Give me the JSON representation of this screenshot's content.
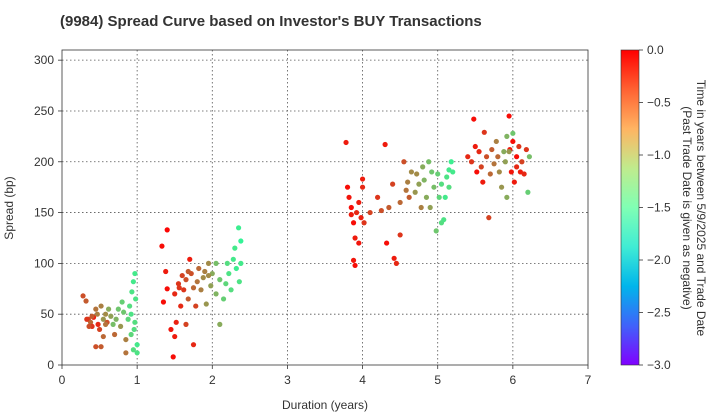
{
  "chart_data": {
    "type": "scatter",
    "title": "(9984)   Spread Curve based on Investor's BUY Transactions",
    "xlabel": "Duration (years)",
    "ylabel": "Spread (bp)",
    "xlim": [
      0,
      7
    ],
    "ylim": [
      0,
      310
    ],
    "xticks": [
      "0",
      "1",
      "2",
      "3",
      "4",
      "5",
      "6",
      "7"
    ],
    "yticks": [
      "0",
      "50",
      "100",
      "150",
      "200",
      "250",
      "300"
    ],
    "grid": true,
    "colorbar": {
      "label_line1": "Time in years between 5/9/2025 and Trade Date",
      "label_line2": "(Past Trade Date is given as negative)",
      "range": [
        -3.0,
        0.0
      ],
      "ticks": [
        "0.0",
        "−0.5",
        "−1.0",
        "−1.5",
        "−2.0",
        "−2.5",
        "−3.0"
      ],
      "colormap": "rainbow"
    },
    "points": [
      [
        0.28,
        68,
        -0.3
      ],
      [
        0.32,
        63,
        -0.35
      ],
      [
        0.35,
        45,
        -0.25
      ],
      [
        0.38,
        42,
        -0.4
      ],
      [
        0.4,
        38,
        -0.2
      ],
      [
        0.42,
        47,
        -0.1
      ],
      [
        0.45,
        18,
        -0.3
      ],
      [
        0.45,
        55,
        -0.45
      ],
      [
        0.48,
        40,
        -0.15
      ],
      [
        0.5,
        35,
        -0.25
      ],
      [
        0.52,
        58,
        -0.5
      ],
      [
        0.52,
        18,
        -0.35
      ],
      [
        0.55,
        45,
        -0.6
      ],
      [
        0.55,
        28,
        -0.4
      ],
      [
        0.58,
        50,
        -0.55
      ],
      [
        0.6,
        42,
        -0.3
      ],
      [
        0.62,
        55,
        -0.7
      ],
      [
        0.65,
        48,
        -0.65
      ],
      [
        0.68,
        40,
        -0.8
      ],
      [
        0.7,
        30,
        -0.4
      ],
      [
        0.72,
        45,
        -0.75
      ],
      [
        0.75,
        55,
        -0.85
      ],
      [
        0.78,
        38,
        -0.6
      ],
      [
        0.8,
        62,
        -0.9
      ],
      [
        0.82,
        52,
        -0.85
      ],
      [
        0.85,
        25,
        -0.5
      ],
      [
        0.85,
        12,
        -0.45
      ],
      [
        0.88,
        45,
        -0.95
      ],
      [
        0.9,
        58,
        -1.0
      ],
      [
        0.92,
        50,
        -1.05
      ],
      [
        0.92,
        30,
        -0.95
      ],
      [
        0.93,
        72,
        -1.05
      ],
      [
        0.95,
        82,
        -1.1
      ],
      [
        0.95,
        15,
        -1.0
      ],
      [
        0.97,
        90,
        -1.1
      ],
      [
        0.97,
        42,
        -1.0
      ],
      [
        0.98,
        65,
        -1.05
      ],
      [
        1.0,
        20,
        -1.1
      ],
      [
        1.0,
        12,
        -1.05
      ],
      [
        0.96,
        35,
        -1.0
      ],
      [
        0.33,
        45,
        -0.2
      ],
      [
        0.4,
        48,
        -0.35
      ],
      [
        0.36,
        38,
        -0.3
      ],
      [
        0.47,
        50,
        -0.5
      ],
      [
        0.58,
        40,
        -0.45
      ],
      [
        1.33,
        117,
        -0.05
      ],
      [
        1.35,
        62,
        -0.05
      ],
      [
        1.38,
        92,
        -0.1
      ],
      [
        1.4,
        133,
        -0.02
      ],
      [
        1.4,
        75,
        -0.05
      ],
      [
        1.45,
        35,
        -0.08
      ],
      [
        1.48,
        8,
        -0.05
      ],
      [
        1.5,
        28,
        -0.1
      ],
      [
        1.5,
        70,
        -0.15
      ],
      [
        1.52,
        42,
        -0.12
      ],
      [
        1.55,
        80,
        -0.2
      ],
      [
        1.58,
        58,
        -0.15
      ],
      [
        1.6,
        88,
        -0.25
      ],
      [
        1.62,
        74,
        -0.2
      ],
      [
        1.65,
        84,
        -0.3
      ],
      [
        1.65,
        40,
        -0.25
      ],
      [
        1.68,
        65,
        -0.35
      ],
      [
        1.7,
        104,
        -0.1
      ],
      [
        1.72,
        90,
        -0.3
      ],
      [
        1.75,
        76,
        -0.4
      ],
      [
        1.75,
        20,
        -0.15
      ],
      [
        1.78,
        58,
        -0.25
      ],
      [
        1.8,
        82,
        -0.45
      ],
      [
        1.82,
        95,
        -0.4
      ],
      [
        1.85,
        74,
        -0.5
      ],
      [
        1.88,
        86,
        -0.55
      ],
      [
        1.9,
        92,
        -0.5
      ],
      [
        1.92,
        60,
        -0.6
      ],
      [
        1.95,
        100,
        -0.55
      ],
      [
        1.98,
        78,
        -0.65
      ],
      [
        2.0,
        90,
        -0.7
      ],
      [
        2.05,
        70,
        -0.75
      ],
      [
        2.05,
        100,
        -0.8
      ],
      [
        2.1,
        84,
        -0.85
      ],
      [
        2.1,
        40,
        -0.7
      ],
      [
        2.15,
        65,
        -0.9
      ],
      [
        2.18,
        80,
        -0.95
      ],
      [
        2.2,
        100,
        -1.0
      ],
      [
        2.22,
        90,
        -1.05
      ],
      [
        2.25,
        74,
        -1.0
      ],
      [
        2.28,
        104,
        -1.1
      ],
      [
        2.3,
        115,
        -1.1
      ],
      [
        2.32,
        95,
        -1.15
      ],
      [
        2.35,
        135,
        -1.15
      ],
      [
        2.36,
        82,
        -1.05
      ],
      [
        2.38,
        122,
        -1.2
      ],
      [
        2.38,
        100,
        -1.1
      ],
      [
        1.95,
        88,
        -0.55
      ],
      [
        1.56,
        76,
        -0.2
      ],
      [
        1.68,
        92,
        -0.35
      ],
      [
        3.78,
        219,
        -0.1
      ],
      [
        3.8,
        175,
        -0.05
      ],
      [
        3.82,
        165,
        -0.08
      ],
      [
        3.85,
        155,
        -0.05
      ],
      [
        3.85,
        148,
        -0.1
      ],
      [
        3.88,
        140,
        -0.05
      ],
      [
        3.88,
        103,
        -0.08
      ],
      [
        3.9,
        125,
        -0.1
      ],
      [
        3.9,
        98,
        -0.05
      ],
      [
        3.92,
        150,
        -0.15
      ],
      [
        3.95,
        160,
        -0.1
      ],
      [
        3.95,
        120,
        -0.08
      ],
      [
        3.98,
        145,
        -0.12
      ],
      [
        4.0,
        175,
        -0.15
      ],
      [
        4.0,
        183,
        -0.1
      ],
      [
        4.02,
        140,
        -0.2
      ],
      [
        4.1,
        150,
        -0.25
      ],
      [
        4.2,
        165,
        -0.2
      ],
      [
        4.25,
        152,
        -0.3
      ],
      [
        4.3,
        217,
        -0.1
      ],
      [
        4.32,
        120,
        -0.05
      ],
      [
        4.35,
        155,
        -0.35
      ],
      [
        4.4,
        178,
        -0.25
      ],
      [
        4.42,
        105,
        -0.1
      ],
      [
        4.45,
        100,
        -0.15
      ],
      [
        4.5,
        128,
        -0.2
      ],
      [
        4.5,
        160,
        -0.4
      ],
      [
        4.55,
        200,
        -0.3
      ],
      [
        4.58,
        172,
        -0.45
      ],
      [
        4.6,
        180,
        -0.5
      ],
      [
        4.62,
        165,
        -0.35
      ],
      [
        4.65,
        190,
        -0.55
      ],
      [
        4.7,
        170,
        -0.6
      ],
      [
        4.72,
        188,
        -0.55
      ],
      [
        4.75,
        178,
        -0.65
      ],
      [
        4.78,
        155,
        -0.5
      ],
      [
        4.8,
        195,
        -0.7
      ],
      [
        4.82,
        182,
        -0.75
      ],
      [
        4.85,
        165,
        -0.7
      ],
      [
        4.88,
        200,
        -0.8
      ],
      [
        4.9,
        155,
        -0.65
      ],
      [
        4.92,
        190,
        -0.85
      ],
      [
        4.95,
        175,
        -0.8
      ],
      [
        4.98,
        132,
        -0.85
      ],
      [
        5.0,
        188,
        -0.9
      ],
      [
        5.02,
        165,
        -0.95
      ],
      [
        5.05,
        140,
        -1.0
      ],
      [
        5.05,
        178,
        -1.0
      ],
      [
        5.08,
        143,
        -1.05
      ],
      [
        5.1,
        165,
        -1.1
      ],
      [
        5.12,
        185,
        -1.05
      ],
      [
        5.15,
        192,
        -1.1
      ],
      [
        5.18,
        200,
        -1.15
      ],
      [
        5.2,
        190,
        -1.1
      ],
      [
        5.15,
        175,
        -1.0
      ],
      [
        5.4,
        205,
        -0.15
      ],
      [
        5.45,
        200,
        -0.2
      ],
      [
        5.48,
        242,
        -0.05
      ],
      [
        5.5,
        215,
        -0.1
      ],
      [
        5.52,
        190,
        -0.05
      ],
      [
        5.55,
        210,
        -0.15
      ],
      [
        5.58,
        195,
        -0.25
      ],
      [
        5.6,
        180,
        -0.1
      ],
      [
        5.62,
        229,
        -0.2
      ],
      [
        5.65,
        205,
        -0.3
      ],
      [
        5.68,
        145,
        -0.25
      ],
      [
        5.7,
        188,
        -0.4
      ],
      [
        5.72,
        212,
        -0.35
      ],
      [
        5.75,
        198,
        -0.45
      ],
      [
        5.78,
        220,
        -0.5
      ],
      [
        5.8,
        205,
        -0.4
      ],
      [
        5.82,
        190,
        -0.55
      ],
      [
        5.85,
        175,
        -0.6
      ],
      [
        5.88,
        210,
        -0.7
      ],
      [
        5.9,
        200,
        -0.65
      ],
      [
        5.92,
        225,
        -0.75
      ],
      [
        5.92,
        165,
        -0.7
      ],
      [
        5.95,
        245,
        -0.05
      ],
      [
        5.96,
        212,
        -0.1
      ],
      [
        5.98,
        190,
        -0.08
      ],
      [
        6.0,
        220,
        -0.05
      ],
      [
        6.02,
        180,
        -0.1
      ],
      [
        6.05,
        195,
        -0.15
      ],
      [
        6.05,
        205,
        -0.05
      ],
      [
        6.08,
        215,
        -0.2
      ],
      [
        6.1,
        190,
        -0.1
      ],
      [
        6.12,
        200,
        -0.25
      ],
      [
        6.15,
        188,
        -0.15
      ],
      [
        6.18,
        212,
        -0.2
      ],
      [
        6.2,
        170,
        -0.9
      ],
      [
        6.22,
        205,
        -0.8
      ],
      [
        6.0,
        228,
        -0.85
      ],
      [
        5.95,
        210,
        -0.6
      ]
    ]
  }
}
